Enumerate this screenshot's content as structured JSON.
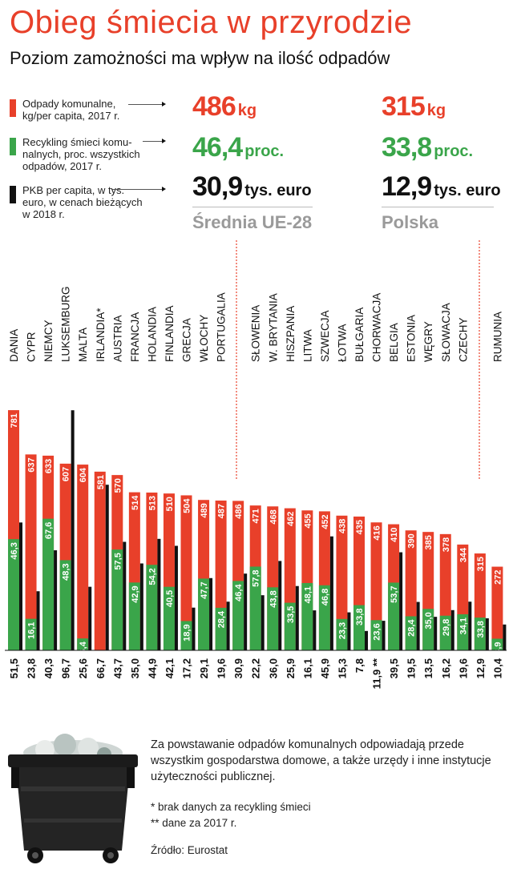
{
  "header": {
    "title": "Obieg śmiecia w przyrodzie",
    "subtitle": "Poziom zamożności ma wpływ na ilość odpadów"
  },
  "legend": [
    {
      "text": "Odpady komunalne, kg/per capita, 2017 r.",
      "color": "#e8402a"
    },
    {
      "text": "Recykling śmieci komu­nalnych, proc. wszyst­kich odpadów, 2017 r.",
      "color": "#3aa54a"
    },
    {
      "text": "PKB per capita, w tys. euro, w cenach bieżących w 2018 r.",
      "color": "#111111"
    }
  ],
  "highlights": {
    "eu": {
      "waste": "486",
      "waste_unit": "kg",
      "recycling": "46,4",
      "recycling_unit": "proc.",
      "gdp": "30,9",
      "gdp_unit": "tys. euro",
      "label": "Średnia UE-28"
    },
    "pl": {
      "waste": "315",
      "waste_unit": "kg",
      "recycling": "33,8",
      "recycling_unit": "proc.",
      "gdp": "12,9",
      "gdp_unit": "tys. euro",
      "label": "Polska"
    }
  },
  "note": "Za powstawanie odpadów komunalnych odpowiadają przede wszystkim gospodarstwa domowe, a także urzędy i inne instytucje użyteczności publicznej.",
  "footnotes": [
    "* brak danych za recykling śmieci",
    "** dane za 2017 r."
  ],
  "source": "Źródło: Eurostat",
  "icon": "waste-bin-image",
  "colors": {
    "waste": "#e8402a",
    "recycling": "#3aa54a",
    "gdp": "#111111",
    "accent": "#e8402a"
  },
  "chart_data": {
    "type": "bar",
    "categories": [
      "DANIA",
      "CYPR",
      "NIEMCY",
      "LUKSEMBURG",
      "MALTA",
      "IRLANDIA*",
      "AUSTRIA",
      "FRANCJA",
      "HOLANDIA",
      "FINLANDIA",
      "GRECJA",
      "WŁOCHY",
      "PORTUGALIA",
      "",
      "SŁOWENIA",
      "W. BRYTANIA",
      "HISZPANIA",
      "LITWA",
      "SZWECJA",
      "ŁOTWA",
      "BUŁGARIA",
      "CHORWACJA",
      "BELGIA",
      "ESTONIA",
      "WĘGRY",
      "SŁOWACJA",
      "CZECHY",
      "",
      "RUMUNIA"
    ],
    "series": [
      {
        "name": "Odpady komunalne, kg/per capita, 2017 r.",
        "values": [
          781,
          637,
          633,
          607,
          604,
          581,
          570,
          514,
          513,
          510,
          504,
          489,
          487,
          486,
          471,
          468,
          462,
          455,
          452,
          438,
          435,
          416,
          410,
          390,
          385,
          378,
          344,
          315,
          272
        ]
      },
      {
        "name": "Recykling śmieci komunalnych, proc. wszystkich odpadów, 2017 r.",
        "values": [
          46.3,
          16.1,
          67.6,
          48.3,
          6.4,
          null,
          57.5,
          42.9,
          54.2,
          40.5,
          18.9,
          47.7,
          28.4,
          46.4,
          57.8,
          43.8,
          33.5,
          48.1,
          46.8,
          23.3,
          33.8,
          23.6,
          53.7,
          28.4,
          35.0,
          29.8,
          34.1,
          33.8,
          13.9
        ]
      },
      {
        "name": "PKB per capita, w tys. euro, w cenach bieżących w 2018 r.",
        "values": [
          51.5,
          23.8,
          40.3,
          96.7,
          25.6,
          66.7,
          43.7,
          35.0,
          44.9,
          42.1,
          17.2,
          29.1,
          19.6,
          30.9,
          22.2,
          36.0,
          25.9,
          16.1,
          45.9,
          15.3,
          7.8,
          11.9,
          39.5,
          19.5,
          13.5,
          16.2,
          19.6,
          12.9,
          10.4
        ]
      }
    ],
    "waste_labels": [
      "781",
      "637",
      "633",
      "607",
      "604",
      "581",
      "570",
      "514",
      "513",
      "510",
      "504",
      "489",
      "487",
      "486",
      "471",
      "468",
      "462",
      "455",
      "452",
      "438",
      "435",
      "416",
      "410",
      "390",
      "385",
      "378",
      "344",
      "315",
      "272"
    ],
    "recycling_labels": [
      "46,3",
      "16,1",
      "67,6",
      "48,3",
      "6,4",
      "",
      "57,5",
      "42,9",
      "54,2",
      "40,5",
      "18,9",
      "47,7",
      "28,4",
      "46,4",
      "57,8",
      "43,8",
      "33,5",
      "48,1",
      "46,8",
      "23,3",
      "33,8",
      "23,6",
      "53,7",
      "28,4",
      "35,0",
      "29,8",
      "34,1",
      "33,8",
      "13,9"
    ],
    "gdp_labels": [
      "51,5",
      "23,8",
      "40,3",
      "96,7",
      "25,6",
      "66,7",
      "43,7",
      "35,0",
      "44,9",
      "42,1",
      "17,2",
      "29,1",
      "19,6",
      "30,9",
      "22,2",
      "36,0",
      "25,9",
      "16,1",
      "45,9",
      "15,3",
      "7,8",
      "11,9 **",
      "39,5",
      "19,5",
      "13,5",
      "16,2",
      "19,6",
      "12,9",
      "10,4"
    ],
    "highlight_indices": [
      13,
      27
    ]
  }
}
